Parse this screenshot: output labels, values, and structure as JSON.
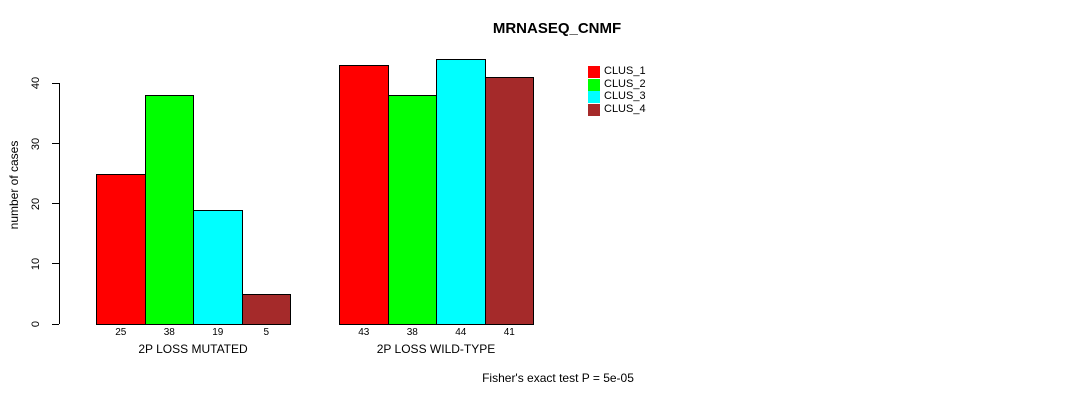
{
  "chart": {
    "title": "MRNASEQ_CNMF",
    "ylabel": "number of cases",
    "annotation": "Fisher's exact test P = 5e-05"
  },
  "chart_data": {
    "type": "bar",
    "title": "MRNASEQ_CNMF",
    "xlabel": "",
    "ylabel": "number of cases",
    "ylim": [
      0,
      44
    ],
    "yticks": [
      0,
      10,
      20,
      30,
      40
    ],
    "grid": false,
    "legend_position": "right",
    "bar_value_labels": true,
    "categories": [
      "2P LOSS MUTATED",
      "2P LOSS WILD-TYPE"
    ],
    "series": [
      {
        "name": "CLUS_1",
        "color": "#FF0000",
        "values": [
          25,
          43
        ]
      },
      {
        "name": "CLUS_2",
        "color": "#00FF00",
        "values": [
          38,
          38
        ]
      },
      {
        "name": "CLUS_3",
        "color": "#00FFFF",
        "values": [
          19,
          44
        ]
      },
      {
        "name": "CLUS_4",
        "color": "#A52A2A",
        "values": [
          5,
          41
        ]
      }
    ],
    "annotation": "Fisher's exact test P = 5e-05"
  }
}
